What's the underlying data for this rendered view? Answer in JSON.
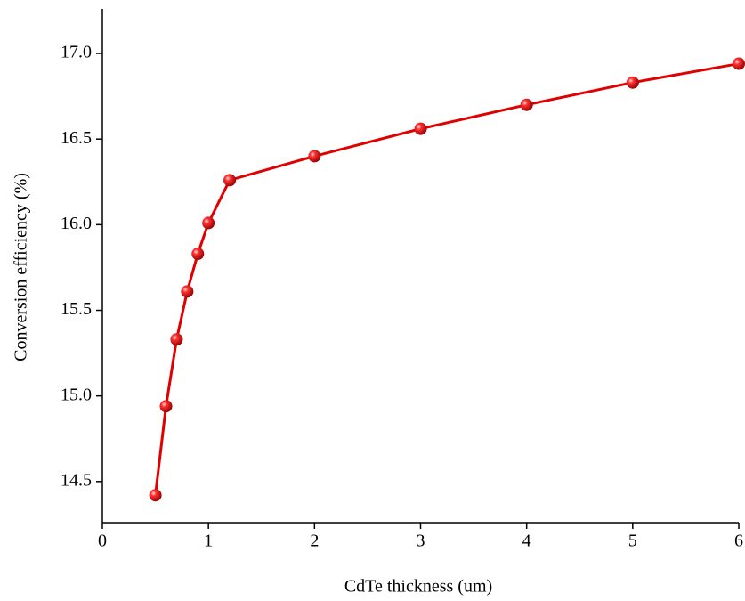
{
  "chart_data": {
    "type": "line",
    "x_label": "CdTe thickness (um)",
    "y_label": "Conversion efficiency (%)",
    "x": [
      0.5,
      0.6,
      0.7,
      0.8,
      0.9,
      1.0,
      1.2,
      2,
      3,
      4,
      5,
      6
    ],
    "series": [
      {
        "color": "#e00000",
        "values": [
          14.42,
          14.94,
          15.33,
          15.61,
          15.83,
          16.01,
          16.26,
          16.4,
          16.56,
          16.7,
          16.83,
          16.94
        ]
      }
    ],
    "xlim": [
      0,
      6
    ],
    "xticks": [
      0,
      1,
      2,
      3,
      4,
      5,
      6
    ],
    "ylim": [
      14.26,
      17.26
    ],
    "yticks": [
      14.5,
      {
        "value": 15,
        "label": "15.0"
      },
      15.5,
      {
        "value": 16,
        "label": "16.0"
      },
      16.5,
      {
        "value": 17,
        "label": "17.0"
      }
    ]
  }
}
